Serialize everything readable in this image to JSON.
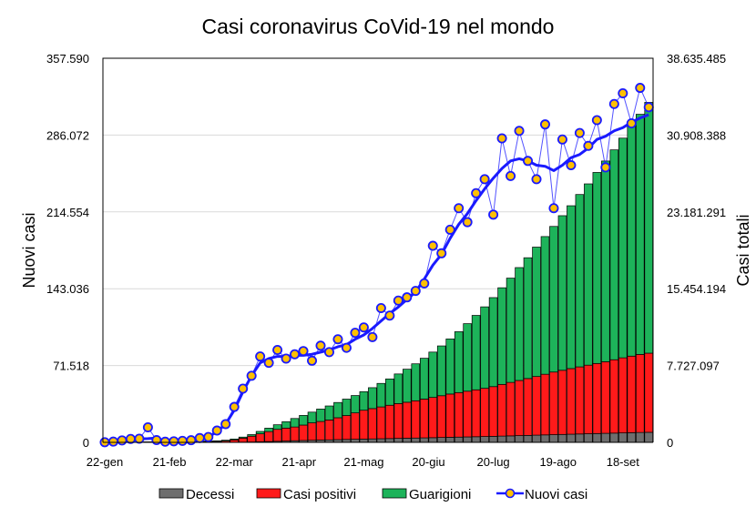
{
  "chart_data": {
    "type": "bar+line",
    "title": "Casi coronavirus CoVid-19 nel mondo",
    "ylabel_left": "Nuovi casi",
    "ylabel_right": "Casi totali",
    "ylim_left": [
      0,
      357590
    ],
    "ylim_right": [
      0,
      38635485
    ],
    "left_ticks": [
      "0",
      "71.518",
      "143.036",
      "214.554",
      "286.072",
      "357.590"
    ],
    "right_ticks": [
      "0",
      "7.727.097",
      "15.454.194",
      "23.181.291",
      "30.908.388",
      "38.635.485"
    ],
    "x_ticks": [
      {
        "day": 0,
        "label": "22-gen"
      },
      {
        "day": 30,
        "label": "21-feb"
      },
      {
        "day": 60,
        "label": "22-mar"
      },
      {
        "day": 90,
        "label": "21-apr"
      },
      {
        "day": 120,
        "label": "21-mag"
      },
      {
        "day": 150,
        "label": "20-giu"
      },
      {
        "day": 180,
        "label": "20-lug"
      },
      {
        "day": 210,
        "label": "19-ago"
      },
      {
        "day": 240,
        "label": "18-set"
      }
    ],
    "x_unit": "days since 22-gen",
    "grid": "horizontal",
    "legend_position": "bottom",
    "x": [
      0,
      4,
      8,
      12,
      16,
      20,
      24,
      28,
      32,
      36,
      40,
      44,
      48,
      52,
      56,
      60,
      64,
      68,
      72,
      76,
      80,
      84,
      88,
      92,
      96,
      100,
      104,
      108,
      112,
      116,
      120,
      124,
      128,
      132,
      136,
      140,
      144,
      148,
      152,
      156,
      160,
      164,
      168,
      172,
      176,
      180,
      184,
      188,
      192,
      196,
      200,
      204,
      208,
      212,
      216,
      220,
      224,
      228,
      232,
      236,
      240,
      244,
      248,
      252
    ],
    "series": [
      {
        "name": "Decessi",
        "type": "stacked-bar",
        "axis": "right",
        "color": "#6e6e6e",
        "values": [
          17,
          56,
          170,
          426,
          719,
          1100,
          1700,
          2100,
          2500,
          2800,
          3100,
          3500,
          4300,
          5800,
          8700,
          14600,
          24000,
          39000,
          59000,
          83000,
          108000,
          134000,
          165000,
          190000,
          211000,
          233000,
          253000,
          276000,
          297000,
          314000,
          330000,
          347000,
          364000,
          382000,
          400000,
          417000,
          434000,
          452000,
          470000,
          490000,
          510000,
          528000,
          547000,
          566000,
          586000,
          607000,
          630000,
          651000,
          676000,
          700000,
          725000,
          750000,
          774000,
          798000,
          820000,
          842000,
          865000,
          887000,
          908000,
          930000,
          952000,
          973000,
          994000,
          1010000
        ]
      },
      {
        "name": "Casi positivi",
        "type": "stacked-bar",
        "axis": "right",
        "color": "#ff1a1a",
        "values": [
          510,
          2000,
          7800,
          19000,
          30000,
          38000,
          53000,
          55000,
          50000,
          42000,
          40000,
          45000,
          60000,
          75000,
          125000,
          230000,
          400000,
          580000,
          800000,
          1000000,
          1200000,
          1300000,
          1380000,
          1550000,
          1750000,
          1870000,
          2000000,
          2200000,
          2400000,
          2650000,
          2900000,
          3050000,
          3200000,
          3350000,
          3500000,
          3620000,
          3750000,
          3900000,
          4050000,
          4200000,
          4350000,
          4480000,
          4600000,
          4720000,
          4850000,
          5000000,
          5200000,
          5380000,
          5550000,
          5720000,
          5900000,
          6100000,
          6300000,
          6450000,
          6600000,
          6750000,
          6900000,
          7050000,
          7200000,
          7380000,
          7550000,
          7700000,
          7850000,
          7960000
        ]
      },
      {
        "name": "Guarigioni",
        "type": "stacked-bar",
        "axis": "right",
        "color": "#1db35a",
        "values": [
          28,
          44,
          230,
          574,
          3281,
          5900,
          14300,
          17900,
          26500,
          38200,
          46900,
          52500,
          54700,
          76200,
          84300,
          92400,
          106000,
          161000,
          241000,
          347000,
          462000,
          646000,
          855000,
          970000,
          1079000,
          1247000,
          1407000,
          1534000,
          1653000,
          1746000,
          1870000,
          2103000,
          2366000,
          2648000,
          2980000,
          3323000,
          3716000,
          4108000,
          4560000,
          5010000,
          5540000,
          6122000,
          6793000,
          7484000,
          8194000,
          8953000,
          9720000,
          10489000,
          11354000,
          12150000,
          13015000,
          13850000,
          14646000,
          15552000,
          16380000,
          17338000,
          18235000,
          19213000,
          20192000,
          21110000,
          22098000,
          23127000,
          24156000,
          25230000
        ]
      },
      {
        "name": "Nuovi casi",
        "type": "line-markers",
        "axis": "left",
        "color": "#1a1aff",
        "marker_color": "#ffc000",
        "values": [
          100,
          700,
          1800,
          3200,
          3400,
          14000,
          2100,
          600,
          1000,
          1400,
          2000,
          4000,
          5000,
          11000,
          17000,
          33000,
          50000,
          62000,
          80000,
          74000,
          86000,
          78000,
          82000,
          85000,
          76000,
          90000,
          84000,
          96000,
          88000,
          102000,
          107000,
          98000,
          125000,
          118000,
          132000,
          135000,
          141000,
          148000,
          183000,
          176000,
          198000,
          218000,
          205000,
          232000,
          245000,
          212000,
          283000,
          248000,
          290000,
          262000,
          245000,
          296000,
          218000,
          282000,
          258000,
          288000,
          276000,
          300000,
          256000,
          315000,
          325000,
          297000,
          330000,
          312000
        ]
      },
      {
        "name": "",
        "type": "line",
        "axis": "left",
        "color": "#1a1aff",
        "values": [
          500,
          1000,
          1800,
          3000,
          3200,
          3500,
          4000,
          1200,
          1000,
          1200,
          2000,
          3500,
          5000,
          10000,
          17000,
          30000,
          47000,
          62000,
          74000,
          78000,
          80000,
          80000,
          81000,
          81000,
          82000,
          84000,
          86000,
          89000,
          91000,
          96000,
          100000,
          106000,
          113000,
          120000,
          126000,
          133000,
          140000,
          152000,
          165000,
          175000,
          190000,
          203000,
          213000,
          225000,
          236000,
          246000,
          255000,
          262000,
          264000,
          262000,
          258000,
          257000,
          253000,
          258000,
          265000,
          268000,
          274000,
          282000,
          285000,
          290000,
          293000,
          298000,
          302000,
          305000
        ]
      }
    ]
  }
}
